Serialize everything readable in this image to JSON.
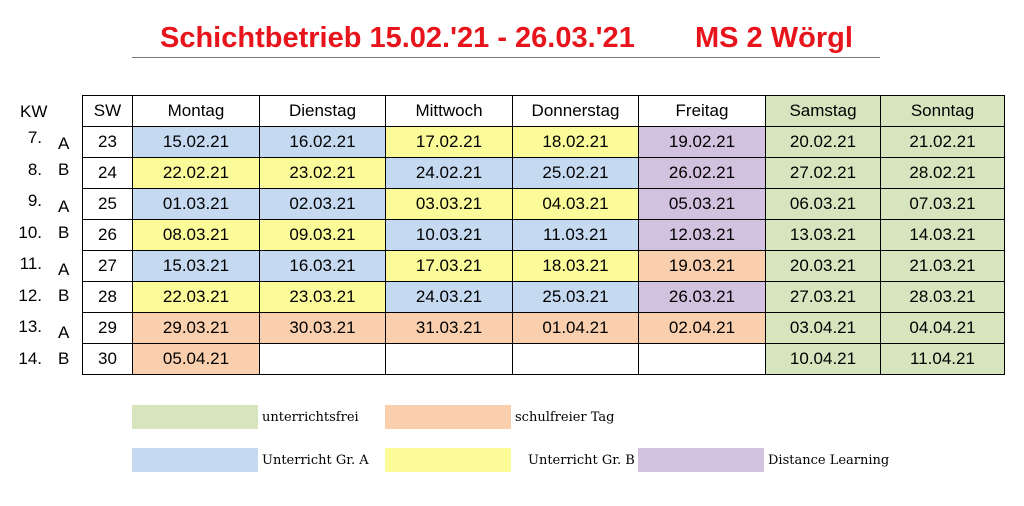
{
  "title": {
    "main": "Schichtbetrieb 15.02.'21 - 26.03.'21",
    "school": "MS 2 Wörgl"
  },
  "colors": {
    "unterrichtsfrei": "#d7e5bf",
    "schulfreier_tag": "#f9cfae",
    "unterricht_a": "#c5d9f1",
    "unterricht_b": "#fbfb99",
    "distance_learning": "#d2c1df",
    "title_red": "#e8141c"
  },
  "table": {
    "kw_header": "KW",
    "sw_header": "SW",
    "day_headers": [
      "Montag",
      "Dienstag",
      "Mittwoch",
      "Donnerstag",
      "Freitag",
      "Samstag",
      "Sonntag"
    ],
    "rows": [
      {
        "kw": "7.",
        "group": "A",
        "sw": "23",
        "cells": [
          {
            "d": "15.02.21",
            "c": "a"
          },
          {
            "d": "16.02.21",
            "c": "a"
          },
          {
            "d": "17.02.21",
            "c": "b"
          },
          {
            "d": "18.02.21",
            "c": "b"
          },
          {
            "d": "19.02.21",
            "c": "dl"
          },
          {
            "d": "20.02.21",
            "c": "free"
          },
          {
            "d": "21.02.21",
            "c": "free"
          }
        ]
      },
      {
        "kw": "8.",
        "group": "B",
        "sw": "24",
        "cells": [
          {
            "d": "22.02.21",
            "c": "b"
          },
          {
            "d": "23.02.21",
            "c": "b"
          },
          {
            "d": "24.02.21",
            "c": "a"
          },
          {
            "d": "25.02.21",
            "c": "a"
          },
          {
            "d": "26.02.21",
            "c": "dl"
          },
          {
            "d": "27.02.21",
            "c": "free"
          },
          {
            "d": "28.02.21",
            "c": "free"
          }
        ]
      },
      {
        "kw": "9.",
        "group": "A",
        "sw": "25",
        "cells": [
          {
            "d": "01.03.21",
            "c": "a"
          },
          {
            "d": "02.03.21",
            "c": "a"
          },
          {
            "d": "03.03.21",
            "c": "b"
          },
          {
            "d": "04.03.21",
            "c": "b"
          },
          {
            "d": "05.03.21",
            "c": "dl"
          },
          {
            "d": "06.03.21",
            "c": "free"
          },
          {
            "d": "07.03.21",
            "c": "free"
          }
        ]
      },
      {
        "kw": "10.",
        "group": "B",
        "sw": "26",
        "cells": [
          {
            "d": "08.03.21",
            "c": "b"
          },
          {
            "d": "09.03.21",
            "c": "b"
          },
          {
            "d": "10.03.21",
            "c": "a"
          },
          {
            "d": "11.03.21",
            "c": "a"
          },
          {
            "d": "12.03.21",
            "c": "dl"
          },
          {
            "d": "13.03.21",
            "c": "free"
          },
          {
            "d": "14.03.21",
            "c": "free"
          }
        ]
      },
      {
        "kw": "11.",
        "group": "A",
        "sw": "27",
        "cells": [
          {
            "d": "15.03.21",
            "c": "a"
          },
          {
            "d": "16.03.21",
            "c": "a"
          },
          {
            "d": "17.03.21",
            "c": "b"
          },
          {
            "d": "18.03.21",
            "c": "b"
          },
          {
            "d": "19.03.21",
            "c": "sfrei"
          },
          {
            "d": "20.03.21",
            "c": "free"
          },
          {
            "d": "21.03.21",
            "c": "free"
          }
        ]
      },
      {
        "kw": "12.",
        "group": "B",
        "sw": "28",
        "cells": [
          {
            "d": "22.03.21",
            "c": "b"
          },
          {
            "d": "23.03.21",
            "c": "b"
          },
          {
            "d": "24.03.21",
            "c": "a"
          },
          {
            "d": "25.03.21",
            "c": "a"
          },
          {
            "d": "26.03.21",
            "c": "dl"
          },
          {
            "d": "27.03.21",
            "c": "free"
          },
          {
            "d": "28.03.21",
            "c": "free"
          }
        ]
      },
      {
        "kw": "13.",
        "group": "A",
        "sw": "29",
        "cells": [
          {
            "d": "29.03.21",
            "c": "sfrei"
          },
          {
            "d": "30.03.21",
            "c": "sfrei"
          },
          {
            "d": "31.03.21",
            "c": "sfrei"
          },
          {
            "d": "01.04.21",
            "c": "sfrei"
          },
          {
            "d": "02.04.21",
            "c": "sfrei"
          },
          {
            "d": "03.04.21",
            "c": "free"
          },
          {
            "d": "04.04.21",
            "c": "free"
          }
        ]
      },
      {
        "kw": "14.",
        "group": "B",
        "sw": "30",
        "cells": [
          {
            "d": "05.04.21",
            "c": "sfrei"
          },
          {
            "d": "",
            "c": "none"
          },
          {
            "d": "",
            "c": "none"
          },
          {
            "d": "",
            "c": "none"
          },
          {
            "d": "",
            "c": "none"
          },
          {
            "d": "10.04.21",
            "c": "free"
          },
          {
            "d": "11.04.21",
            "c": "free"
          }
        ]
      }
    ]
  },
  "legend": {
    "unterrichtsfrei": "unterrichtsfrei",
    "schulfreier_tag": "schulfreier Tag",
    "unterricht_a": "Unterricht Gr. A",
    "unterricht_b": "Unterricht Gr. B",
    "distance_learning": "Distance Learning"
  }
}
